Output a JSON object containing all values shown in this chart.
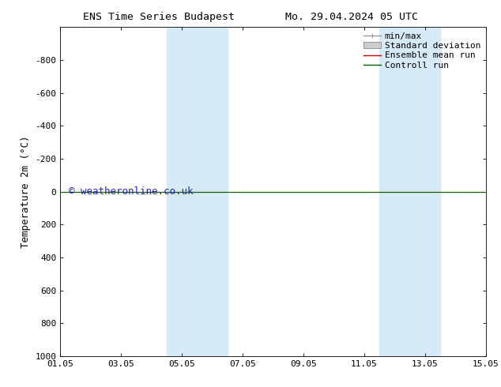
{
  "title_left": "ENS Time Series Budapest",
  "title_right": "Mo. 29.04.2024 05 UTC",
  "ylabel": "Temperature 2m (°C)",
  "watermark": "© weatheronline.co.uk",
  "xlim": [
    0.0,
    14.0
  ],
  "ylim_bottom": 1000,
  "ylim_top": -1000,
  "yticks": [
    -800,
    -600,
    -400,
    -200,
    0,
    200,
    400,
    600,
    800,
    1000
  ],
  "xtick_labels": [
    "01.05",
    "03.05",
    "05.05",
    "07.05",
    "09.05",
    "11.05",
    "13.05",
    "15.05"
  ],
  "xtick_positions": [
    0.0,
    2.0,
    4.0,
    6.0,
    8.0,
    10.0,
    12.0,
    14.0
  ],
  "shaded_bands": [
    {
      "xmin": 3.5,
      "xmax": 5.5
    },
    {
      "xmin": 10.5,
      "xmax": 12.5
    }
  ],
  "shade_color": "#d6eaf8",
  "control_run_y": 0,
  "control_run_color": "#006400",
  "ensemble_mean_color": "#cc0000",
  "minmax_color": "#999999",
  "stddev_color": "#cccccc",
  "legend_entries": [
    "min/max",
    "Standard deviation",
    "Ensemble mean run",
    "Controll run"
  ],
  "legend_line_colors": [
    "#999999",
    "#cccccc",
    "#cc0000",
    "#006400"
  ],
  "bg_color": "#ffffff",
  "spine_color": "#000000",
  "tick_color": "#000000",
  "label_fontsize": 9,
  "tick_fontsize": 8,
  "legend_fontsize": 8
}
